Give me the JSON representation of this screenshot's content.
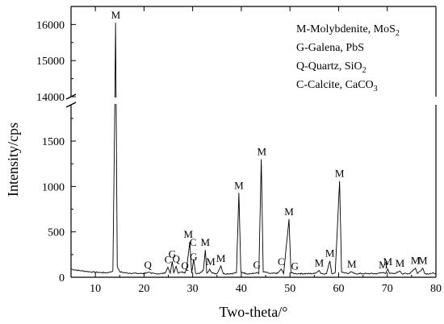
{
  "chart_data": {
    "type": "line",
    "title": "",
    "xlabel": "Two-theta/°",
    "ylabel": "Intensity/cps",
    "xlim": [
      5,
      80
    ],
    "ylim_lower": [
      0,
      1900
    ],
    "ylim_upper": [
      14000,
      16500
    ],
    "axis_break": true,
    "x_ticks": [
      10,
      20,
      30,
      40,
      50,
      60,
      70,
      80
    ],
    "y_ticks_lower": [
      0,
      500,
      1000,
      1500
    ],
    "y_ticks_upper": [
      14000,
      15000,
      16000
    ],
    "grid": false,
    "legend_position": "top-right",
    "legend": [
      {
        "code": "M",
        "text": "M-Molybdenite, MoS",
        "sub": "2"
      },
      {
        "code": "G",
        "text": "G-Galena, PbS",
        "sub": ""
      },
      {
        "code": "Q",
        "text": "Q-Quartz, SiO",
        "sub": "2"
      },
      {
        "code": "C",
        "text": "C-Calcite, CaCO",
        "sub": "3"
      }
    ],
    "series": [
      {
        "values": [
          [
            5,
            90
          ],
          [
            6,
            80
          ],
          [
            7,
            72
          ],
          [
            8,
            66
          ],
          [
            9,
            60
          ],
          [
            10,
            56
          ],
          [
            11,
            52
          ],
          [
            12,
            50
          ],
          [
            13,
            55
          ],
          [
            13.6,
            70
          ],
          [
            14,
            1900
          ],
          [
            14.15,
            16050
          ],
          [
            14.3,
            1700
          ],
          [
            14.5,
            120
          ],
          [
            15,
            60
          ],
          [
            16,
            50
          ],
          [
            17,
            46
          ],
          [
            18,
            44
          ],
          [
            19,
            42
          ],
          [
            20,
            42
          ],
          [
            20.8,
            55
          ],
          [
            21.5,
            42
          ],
          [
            22.5,
            40
          ],
          [
            23.5,
            40
          ],
          [
            24.3,
            45
          ],
          [
            24.9,
            110
          ],
          [
            25.4,
            45
          ],
          [
            25.8,
            175
          ],
          [
            26.1,
            50
          ],
          [
            26.6,
            120
          ],
          [
            27,
            45
          ],
          [
            27.9,
            60
          ],
          [
            28.4,
            45
          ],
          [
            28.8,
            110
          ],
          [
            29.4,
            390
          ],
          [
            29.8,
            45
          ],
          [
            30.2,
            200
          ],
          [
            30.6,
            45
          ],
          [
            31.4,
            40
          ],
          [
            32.2,
            75
          ],
          [
            32.6,
            300
          ],
          [
            32.9,
            45
          ],
          [
            33.5,
            90
          ],
          [
            34,
            45
          ],
          [
            35,
            40
          ],
          [
            35.8,
            125
          ],
          [
            36.3,
            40
          ],
          [
            38,
            40
          ],
          [
            39,
            50
          ],
          [
            39.5,
            930
          ],
          [
            39.9,
            60
          ],
          [
            41,
            40
          ],
          [
            42.5,
            40
          ],
          [
            43.2,
            55
          ],
          [
            43.6,
            40
          ],
          [
            44.1,
            1300
          ],
          [
            44.5,
            60
          ],
          [
            46,
            40
          ],
          [
            47.5,
            45
          ],
          [
            48.2,
            90
          ],
          [
            48.7,
            40
          ],
          [
            49.8,
            640
          ],
          [
            50.2,
            50
          ],
          [
            51,
            40
          ],
          [
            52,
            40
          ],
          [
            53.5,
            40
          ],
          [
            55,
            40
          ],
          [
            56,
            75
          ],
          [
            56.4,
            40
          ],
          [
            57.5,
            40
          ],
          [
            58.2,
            180
          ],
          [
            58.6,
            40
          ],
          [
            59.3,
            50
          ],
          [
            60.2,
            1060
          ],
          [
            60.6,
            60
          ],
          [
            62,
            40
          ],
          [
            62.7,
            60
          ],
          [
            63.2,
            40
          ],
          [
            65,
            40
          ],
          [
            66.5,
            40
          ],
          [
            68,
            40
          ],
          [
            69.2,
            55
          ],
          [
            69.6,
            40
          ],
          [
            70.1,
            90
          ],
          [
            70.5,
            40
          ],
          [
            71.5,
            40
          ],
          [
            72.6,
            70
          ],
          [
            73,
            40
          ],
          [
            74.5,
            40
          ],
          [
            75.8,
            100
          ],
          [
            76.2,
            40
          ],
          [
            77.3,
            100
          ],
          [
            77.7,
            40
          ],
          [
            79,
            40
          ],
          [
            80,
            45
          ]
        ]
      }
    ],
    "annotations": [
      {
        "text": "M",
        "x": 14.2,
        "y": 16050
      },
      {
        "text": "Q",
        "x": 20.8,
        "y": 55
      },
      {
        "text": "C",
        "x": 24.9,
        "y": 110
      },
      {
        "text": "G",
        "x": 25.8,
        "y": 175
      },
      {
        "text": "Q",
        "x": 26.6,
        "y": 120
      },
      {
        "text": "Q",
        "x": 28.4,
        "y": 45
      },
      {
        "text": "M",
        "x": 29.1,
        "y": 390
      },
      {
        "text": "C",
        "x": 30.1,
        "y": 300
      },
      {
        "text": "G",
        "x": 30.2,
        "y": 140
      },
      {
        "text": "M",
        "x": 32.6,
        "y": 300
      },
      {
        "text": "M",
        "x": 33.7,
        "y": 90
      },
      {
        "text": "M",
        "x": 35.8,
        "y": 125
      },
      {
        "text": "M",
        "x": 39.5,
        "y": 930
      },
      {
        "text": "G",
        "x": 43.2,
        "y": 55
      },
      {
        "text": "M",
        "x": 44.2,
        "y": 1300
      },
      {
        "text": "C",
        "x": 48.2,
        "y": 90
      },
      {
        "text": "M",
        "x": 49.8,
        "y": 640
      },
      {
        "text": "G",
        "x": 51.0,
        "y": 40
      },
      {
        "text": "M",
        "x": 56.0,
        "y": 75
      },
      {
        "text": "M",
        "x": 58.2,
        "y": 180
      },
      {
        "text": "M",
        "x": 60.2,
        "y": 1060
      },
      {
        "text": "M",
        "x": 62.7,
        "y": 60
      },
      {
        "text": "M",
        "x": 69.2,
        "y": 55
      },
      {
        "text": "M",
        "x": 70.1,
        "y": 90
      },
      {
        "text": "M",
        "x": 72.6,
        "y": 70
      },
      {
        "text": "M",
        "x": 75.8,
        "y": 100
      },
      {
        "text": "M",
        "x": 77.3,
        "y": 100
      }
    ],
    "colors": {
      "line": "#000000",
      "axis": "#000000",
      "background": "#ffffff"
    }
  }
}
